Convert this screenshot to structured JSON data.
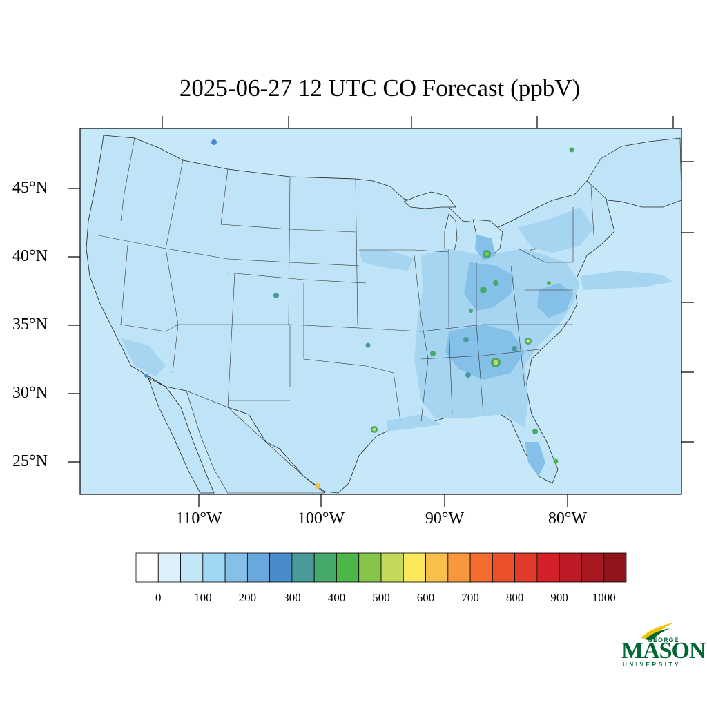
{
  "title": "2025-06-27 12 UTC CO Forecast (ppbV)",
  "lat_labels": [
    "45°N",
    "40°N",
    "35°N",
    "30°N",
    "25°N"
  ],
  "lon_labels": [
    "110°W",
    "100°W",
    "90°W",
    "80°W"
  ],
  "colorbar": {
    "tick_labels": [
      "0",
      "100",
      "200",
      "300",
      "400",
      "500",
      "600",
      "700",
      "800",
      "900",
      "1000"
    ],
    "colors": [
      "#ffffff",
      "#dcf0fb",
      "#c0e6f8",
      "#a0d8f3",
      "#84c0e8",
      "#68a8dc",
      "#4a8ccb",
      "#4a9a9a",
      "#46a86a",
      "#4cb649",
      "#86c54c",
      "#c4d85a",
      "#f8e85a",
      "#f8c04a",
      "#f8983e",
      "#f46c2e",
      "#ea502a",
      "#e03a28",
      "#d42028",
      "#bc1a24",
      "#a81820",
      "#90141c"
    ]
  },
  "map": {
    "ocean_color": "#c6e8f8",
    "land_color": "#bfe4f7",
    "elevated_color": "#a6d5f2",
    "high_color": "#84c0e8"
  },
  "logo": {
    "line1": "GEORGE",
    "line2": "MASON",
    "line3": "UNIVERSITY"
  }
}
